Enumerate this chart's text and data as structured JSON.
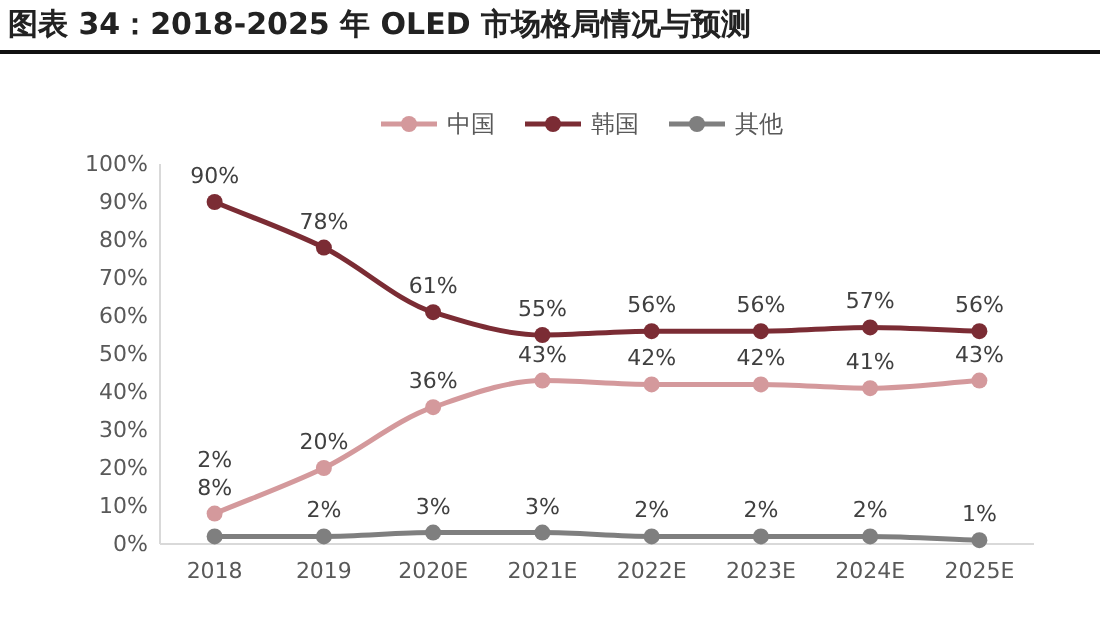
{
  "chart_data": {
    "type": "line",
    "title": "图表 34：2018-2025 年 OLED 市场格局情况与预测",
    "categories": [
      "2018",
      "2019",
      "2020E",
      "2021E",
      "2022E",
      "2023E",
      "2024E",
      "2025E"
    ],
    "series": [
      {
        "name": "中国",
        "color": "#d4999c",
        "values": [
          8,
          20,
          36,
          43,
          42,
          42,
          41,
          43
        ],
        "value_labels": [
          "8%",
          "20%",
          "36%",
          "43%",
          "42%",
          "42%",
          "41%",
          "43%"
        ]
      },
      {
        "name": "韩国",
        "color": "#7b2c34",
        "values": [
          90,
          78,
          61,
          55,
          56,
          56,
          57,
          56
        ],
        "value_labels": [
          "90%",
          "78%",
          "61%",
          "55%",
          "56%",
          "56%",
          "57%",
          "56%"
        ]
      },
      {
        "name": "其他",
        "color": "#7f7f7f",
        "values": [
          2,
          2,
          3,
          3,
          2,
          2,
          2,
          1
        ],
        "value_labels": [
          "2%",
          "2%",
          "3%",
          "3%",
          "2%",
          "2%",
          "2%",
          "1%"
        ]
      }
    ],
    "ylim": [
      0,
      100
    ],
    "yticks": [
      {
        "value": 0,
        "label": "0%"
      },
      {
        "value": 10,
        "label": "10%"
      },
      {
        "value": 20,
        "label": "20%"
      },
      {
        "value": 30,
        "label": "30%"
      },
      {
        "value": 40,
        "label": "40%"
      },
      {
        "value": 50,
        "label": "50%"
      },
      {
        "value": 60,
        "label": "60%"
      },
      {
        "value": 70,
        "label": "70%"
      },
      {
        "value": 80,
        "label": "80%"
      },
      {
        "value": 90,
        "label": "90%"
      },
      {
        "value": 100,
        "label": "100%"
      }
    ],
    "grid": false,
    "legend": "top",
    "marker": "circle",
    "line_style": "solid"
  }
}
